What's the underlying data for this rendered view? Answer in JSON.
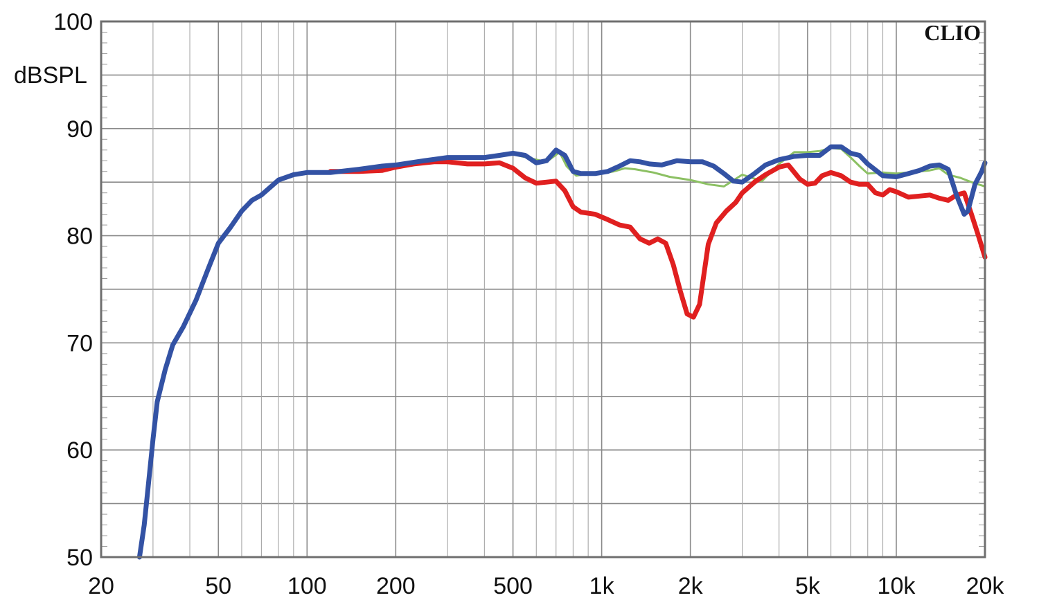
{
  "chart_data": {
    "type": "line",
    "xscale": "log",
    "xlim": [
      20,
      20000
    ],
    "ylim": [
      50,
      100
    ],
    "ylabel": "dBSPL",
    "watermark": "CLIO",
    "grid": true,
    "x_tick_values": [
      20,
      50,
      100,
      200,
      500,
      1000,
      2000,
      5000,
      10000,
      20000
    ],
    "x_tick_labels": [
      "20",
      "50",
      "100",
      "200",
      "500",
      "1k",
      "2k",
      "5k",
      "10k",
      "20k"
    ],
    "y_tick_values": [
      50,
      60,
      70,
      80,
      90,
      100
    ],
    "y_tick_labels": [
      "50",
      "60",
      "70",
      "80",
      "90",
      "100"
    ],
    "series": [
      {
        "color": "#8cc063",
        "width": 3,
        "points": [
          [
            120,
            86.0
          ],
          [
            160,
            86.2
          ],
          [
            200,
            86.7
          ],
          [
            250,
            87.0
          ],
          [
            300,
            87.2
          ],
          [
            400,
            87.3
          ],
          [
            500,
            87.6
          ],
          [
            600,
            87.1
          ],
          [
            650,
            86.9
          ],
          [
            720,
            87.8
          ],
          [
            760,
            86.5
          ],
          [
            820,
            85.6
          ],
          [
            900,
            85.8
          ],
          [
            1000,
            85.8
          ],
          [
            1100,
            86.0
          ],
          [
            1200,
            86.3
          ],
          [
            1300,
            86.2
          ],
          [
            1500,
            85.9
          ],
          [
            1700,
            85.5
          ],
          [
            2000,
            85.2
          ],
          [
            2300,
            84.8
          ],
          [
            2600,
            84.6
          ],
          [
            3000,
            85.7
          ],
          [
            3500,
            85.1
          ],
          [
            4000,
            86.7
          ],
          [
            4500,
            87.8
          ],
          [
            5000,
            87.8
          ],
          [
            5500,
            87.9
          ],
          [
            6000,
            88.2
          ],
          [
            6500,
            88.1
          ],
          [
            7000,
            87.3
          ],
          [
            7500,
            86.5
          ],
          [
            8000,
            85.8
          ],
          [
            9000,
            85.9
          ],
          [
            10000,
            85.8
          ],
          [
            11000,
            85.9
          ],
          [
            12000,
            86.0
          ],
          [
            13000,
            86.1
          ],
          [
            14000,
            86.3
          ],
          [
            15000,
            85.7
          ],
          [
            16500,
            85.4
          ],
          [
            18000,
            85.0
          ],
          [
            20000,
            84.6
          ]
        ]
      },
      {
        "color": "#e02020",
        "width": 7,
        "points": [
          [
            120,
            86.0
          ],
          [
            150,
            86.0
          ],
          [
            180,
            86.1
          ],
          [
            200,
            86.4
          ],
          [
            230,
            86.7
          ],
          [
            270,
            86.9
          ],
          [
            300,
            86.9
          ],
          [
            350,
            86.7
          ],
          [
            400,
            86.7
          ],
          [
            450,
            86.8
          ],
          [
            500,
            86.3
          ],
          [
            550,
            85.4
          ],
          [
            600,
            84.9
          ],
          [
            650,
            85.0
          ],
          [
            700,
            85.1
          ],
          [
            750,
            84.2
          ],
          [
            800,
            82.7
          ],
          [
            850,
            82.2
          ],
          [
            950,
            82.0
          ],
          [
            1050,
            81.5
          ],
          [
            1150,
            81.0
          ],
          [
            1250,
            80.8
          ],
          [
            1350,
            79.7
          ],
          [
            1450,
            79.3
          ],
          [
            1550,
            79.7
          ],
          [
            1650,
            79.3
          ],
          [
            1750,
            77.3
          ],
          [
            1850,
            74.8
          ],
          [
            1950,
            72.7
          ],
          [
            2050,
            72.4
          ],
          [
            2150,
            73.6
          ],
          [
            2300,
            79.2
          ],
          [
            2450,
            81.2
          ],
          [
            2650,
            82.3
          ],
          [
            2850,
            83.1
          ],
          [
            3000,
            84.0
          ],
          [
            3300,
            85.0
          ],
          [
            3600,
            85.7
          ],
          [
            4000,
            86.4
          ],
          [
            4300,
            86.6
          ],
          [
            4700,
            85.3
          ],
          [
            5000,
            84.8
          ],
          [
            5300,
            84.9
          ],
          [
            5600,
            85.6
          ],
          [
            6000,
            85.9
          ],
          [
            6500,
            85.6
          ],
          [
            7000,
            85.0
          ],
          [
            7500,
            84.8
          ],
          [
            8000,
            84.8
          ],
          [
            8500,
            84.0
          ],
          [
            9000,
            83.8
          ],
          [
            9500,
            84.3
          ],
          [
            10000,
            84.1
          ],
          [
            11000,
            83.6
          ],
          [
            12000,
            83.7
          ],
          [
            13000,
            83.8
          ],
          [
            14000,
            83.5
          ],
          [
            15000,
            83.3
          ],
          [
            16000,
            83.8
          ],
          [
            17000,
            84.0
          ],
          [
            18000,
            82.0
          ],
          [
            19000,
            80.0
          ],
          [
            20000,
            78.0
          ]
        ]
      },
      {
        "color": "#3352a4",
        "width": 7,
        "points": [
          [
            27,
            50.0
          ],
          [
            28,
            53.0
          ],
          [
            29,
            57.0
          ],
          [
            30,
            61.0
          ],
          [
            31,
            64.5
          ],
          [
            33,
            67.5
          ],
          [
            35,
            69.8
          ],
          [
            38,
            71.5
          ],
          [
            42,
            74.0
          ],
          [
            46,
            76.8
          ],
          [
            50,
            79.3
          ],
          [
            55,
            80.8
          ],
          [
            60,
            82.3
          ],
          [
            65,
            83.3
          ],
          [
            70,
            83.8
          ],
          [
            80,
            85.2
          ],
          [
            90,
            85.7
          ],
          [
            100,
            85.9
          ],
          [
            120,
            85.9
          ],
          [
            150,
            86.2
          ],
          [
            180,
            86.5
          ],
          [
            200,
            86.6
          ],
          [
            250,
            87.0
          ],
          [
            300,
            87.3
          ],
          [
            350,
            87.3
          ],
          [
            400,
            87.3
          ],
          [
            450,
            87.5
          ],
          [
            500,
            87.7
          ],
          [
            550,
            87.5
          ],
          [
            600,
            86.8
          ],
          [
            650,
            87.0
          ],
          [
            700,
            88.0
          ],
          [
            750,
            87.5
          ],
          [
            800,
            86.0
          ],
          [
            850,
            85.8
          ],
          [
            950,
            85.8
          ],
          [
            1050,
            86.0
          ],
          [
            1150,
            86.5
          ],
          [
            1250,
            87.0
          ],
          [
            1350,
            86.9
          ],
          [
            1450,
            86.7
          ],
          [
            1600,
            86.6
          ],
          [
            1800,
            87.0
          ],
          [
            2000,
            86.9
          ],
          [
            2200,
            86.9
          ],
          [
            2400,
            86.5
          ],
          [
            2600,
            85.8
          ],
          [
            2800,
            85.1
          ],
          [
            3000,
            85.0
          ],
          [
            3300,
            85.8
          ],
          [
            3600,
            86.6
          ],
          [
            4000,
            87.1
          ],
          [
            4500,
            87.4
          ],
          [
            5000,
            87.5
          ],
          [
            5500,
            87.5
          ],
          [
            6000,
            88.3
          ],
          [
            6500,
            88.3
          ],
          [
            7000,
            87.7
          ],
          [
            7500,
            87.5
          ],
          [
            8000,
            86.7
          ],
          [
            9000,
            85.6
          ],
          [
            10000,
            85.5
          ],
          [
            11000,
            85.8
          ],
          [
            12000,
            86.1
          ],
          [
            13000,
            86.5
          ],
          [
            14000,
            86.6
          ],
          [
            15000,
            86.2
          ],
          [
            16000,
            83.8
          ],
          [
            17000,
            82.0
          ],
          [
            17500,
            82.3
          ],
          [
            18500,
            84.8
          ],
          [
            19500,
            86.0
          ],
          [
            20000,
            86.8
          ]
        ]
      }
    ]
  }
}
